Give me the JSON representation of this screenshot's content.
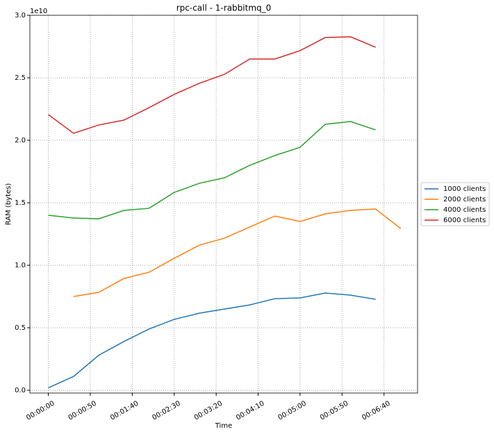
{
  "chart_data": {
    "type": "line",
    "title": "rpc-call - 1-rabbitmq_0",
    "xlabel": "Time",
    "ylabel": "RAM (bytes)",
    "y_offset_label": "1e10",
    "x": [
      0,
      30,
      60,
      90,
      120,
      150,
      180,
      210,
      240,
      270,
      300,
      330,
      360,
      390,
      420
    ],
    "series": [
      {
        "name": "1000 clients",
        "color": "#1f77b4",
        "values": [
          200000000.0,
          1100000000.0,
          2800000000.0,
          3900000000.0,
          4900000000.0,
          5670000000.0,
          6170000000.0,
          6500000000.0,
          6830000000.0,
          7330000000.0,
          7390000000.0,
          7780000000.0,
          7610000000.0,
          7280000000.0,
          null
        ]
      },
      {
        "name": "2000 clients",
        "color": "#ff7f0e",
        "values": [
          null,
          7500000000.0,
          7830000000.0,
          8940000000.0,
          9440000000.0,
          10560000000.0,
          11610000000.0,
          12170000000.0,
          13060000000.0,
          13940000000.0,
          13500000000.0,
          14110000000.0,
          14390000000.0,
          14500000000.0,
          12940000000.0
        ]
      },
      {
        "name": "4000 clients",
        "color": "#2ca02c",
        "values": [
          14000000000.0,
          13780000000.0,
          13720000000.0,
          14390000000.0,
          14560000000.0,
          15830000000.0,
          16560000000.0,
          17000000000.0,
          18000000000.0,
          18780000000.0,
          19440000000.0,
          21280000000.0,
          21500000000.0,
          20830000000.0,
          null
        ]
      },
      {
        "name": "6000 clients",
        "color": "#d62728",
        "values": [
          22060000000.0,
          20560000000.0,
          21220000000.0,
          21610000000.0,
          22610000000.0,
          23670000000.0,
          24560000000.0,
          25280000000.0,
          26500000000.0,
          26500000000.0,
          27170000000.0,
          28220000000.0,
          28280000000.0,
          27440000000.0,
          null
        ]
      }
    ],
    "xlim": [
      -22,
      440
    ],
    "xticks": [
      {
        "value": 0,
        "label": "00:00:00"
      },
      {
        "value": 50,
        "label": "00:00:50"
      },
      {
        "value": 100,
        "label": "00:01:40"
      },
      {
        "value": 150,
        "label": "00:02:30"
      },
      {
        "value": 200,
        "label": "00:03:20"
      },
      {
        "value": 250,
        "label": "00:04:10"
      },
      {
        "value": 300,
        "label": "00:05:00"
      },
      {
        "value": 350,
        "label": "00:05:50"
      },
      {
        "value": 400,
        "label": "00:06:40"
      }
    ],
    "ylim": [
      -220000000.0,
      30000000000.0
    ],
    "yticks": [
      {
        "value": 0,
        "label": "0.0"
      },
      {
        "value": 5000000000.0,
        "label": "0.5"
      },
      {
        "value": 10000000000.0,
        "label": "1.0"
      },
      {
        "value": 15000000000.0,
        "label": "1.5"
      },
      {
        "value": 20000000000.0,
        "label": "2.0"
      },
      {
        "value": 25000000000.0,
        "label": "2.5"
      },
      {
        "value": 30000000000.0,
        "label": "3.0"
      }
    ],
    "grid": true,
    "legend": "right"
  }
}
